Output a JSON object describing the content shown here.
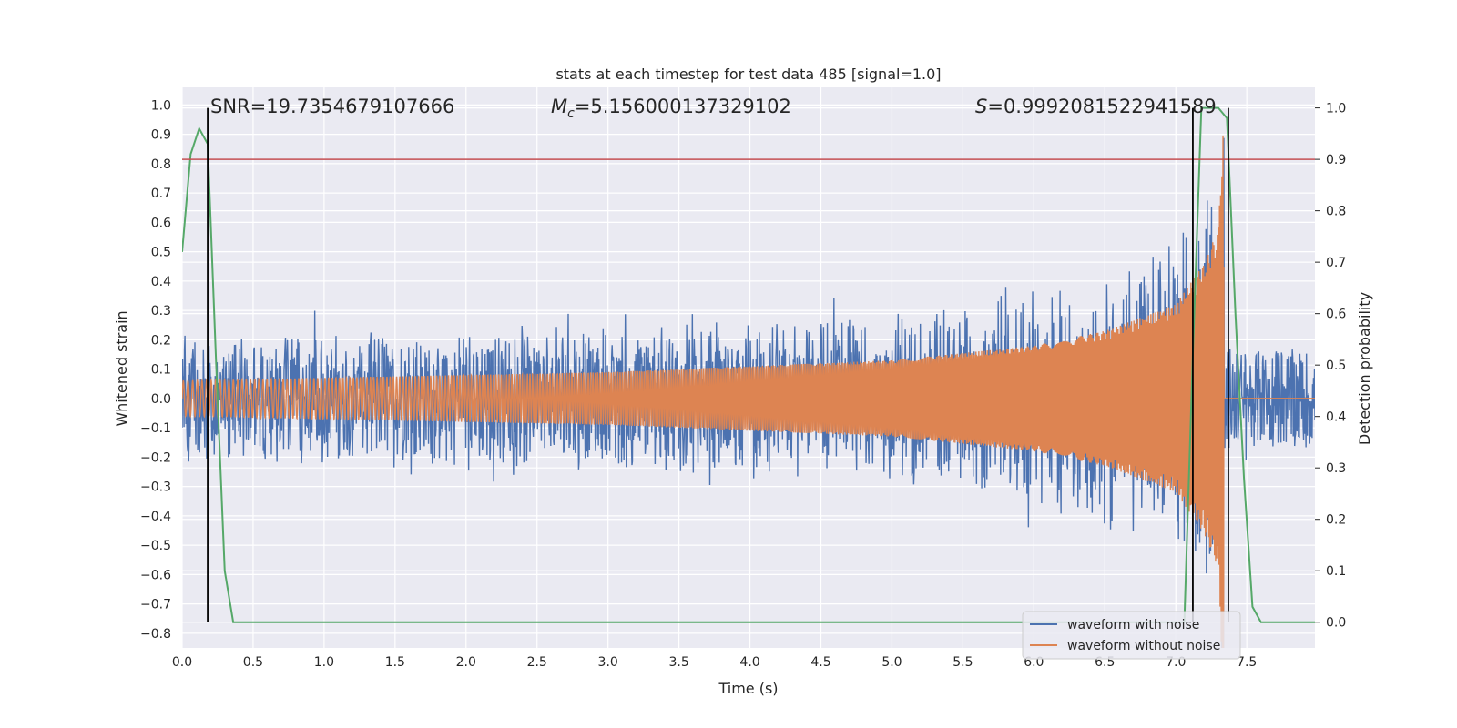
{
  "chart_data": {
    "type": "line",
    "title": "stats at each timestep for test data 485 [signal=1.0]",
    "xlabel": "Time (s)",
    "ylabel": "Whitened strain",
    "ylabel_right": "Detection probability",
    "xlim": [
      0.0,
      7.98
    ],
    "ylim": [
      -0.85,
      1.06
    ],
    "ylim_right": [
      -0.05,
      1.04
    ],
    "x_ticks": [
      "0.0",
      "0.5",
      "1.0",
      "1.5",
      "2.0",
      "2.5",
      "3.0",
      "3.5",
      "4.0",
      "4.5",
      "5.0",
      "5.5",
      "6.0",
      "6.5",
      "7.0",
      "7.5"
    ],
    "x_tick_values": [
      0.0,
      0.5,
      1.0,
      1.5,
      2.0,
      2.5,
      3.0,
      3.5,
      4.0,
      4.5,
      5.0,
      5.5,
      6.0,
      6.5,
      7.0,
      7.5
    ],
    "y_ticks": [
      "1.0",
      "0.9",
      "0.8",
      "0.7",
      "0.6",
      "0.5",
      "0.4",
      "0.3",
      "0.2",
      "0.1",
      "0.0",
      "−0.1",
      "−0.2",
      "−0.3",
      "−0.4",
      "−0.5",
      "−0.6",
      "−0.7",
      "−0.8"
    ],
    "y_tick_values": [
      1.0,
      0.9,
      0.8,
      0.7,
      0.6,
      0.5,
      0.4,
      0.3,
      0.2,
      0.1,
      0.0,
      -0.1,
      -0.2,
      -0.3,
      -0.4,
      -0.5,
      -0.6,
      -0.7,
      -0.8
    ],
    "y_right_ticks": [
      "1.0",
      "0.9",
      "0.8",
      "0.7",
      "0.6",
      "0.5",
      "0.4",
      "0.3",
      "0.2",
      "0.1",
      "0.0"
    ],
    "y_right_tick_values": [
      1.0,
      0.9,
      0.8,
      0.7,
      0.6,
      0.5,
      0.4,
      0.3,
      0.2,
      0.1,
      0.0
    ],
    "annotations": {
      "snr": "SNR=19.7354679107666",
      "mc_label": "M",
      "mc_sub": "c",
      "mc_value": "=5.156000137329102",
      "s_label": "S",
      "s_value": "=0.9992081522941589"
    },
    "threshold_right": 0.9,
    "vertical_lines": [
      0.18,
      7.12,
      7.37
    ],
    "noise_band": {
      "start": [
        -0.24,
        0.24
      ],
      "peak": [
        -0.75,
        0.72
      ],
      "post": [
        -0.22,
        0.22
      ]
    },
    "signal_envelope": {
      "x": [
        0.0,
        1.0,
        2.0,
        3.0,
        4.0,
        5.0,
        6.0,
        6.5,
        7.0,
        7.2,
        7.3,
        7.33
      ],
      "amp": [
        0.06,
        0.07,
        0.08,
        0.09,
        0.11,
        0.13,
        0.18,
        0.23,
        0.32,
        0.46,
        0.58,
        0.95
      ],
      "merger_time": 7.34
    },
    "series": [
      {
        "name": "waveform with noise",
        "color": "#4c72b0"
      },
      {
        "name": "waveform without noise",
        "color": "#dd8452"
      },
      {
        "name": "Detection probability",
        "color": "#55a868",
        "x": [
          0.0,
          0.06,
          0.12,
          0.18,
          0.24,
          0.3,
          0.36,
          0.42,
          7.0,
          7.06,
          7.12,
          7.18,
          7.24,
          7.3,
          7.36,
          7.42,
          7.48,
          7.54,
          7.6,
          7.66,
          7.98
        ],
        "y": [
          0.72,
          0.91,
          0.96,
          0.93,
          0.5,
          0.1,
          0.0,
          0.0,
          0.0,
          0.0,
          0.52,
          1.0,
          1.0,
          1.0,
          0.98,
          0.6,
          0.28,
          0.03,
          0.0,
          0.0,
          0.0
        ]
      }
    ],
    "threshold_color": "#c44e52",
    "vline_color": "#000000",
    "background_color": "#eaeaf2",
    "grid_color": "#ffffff"
  }
}
